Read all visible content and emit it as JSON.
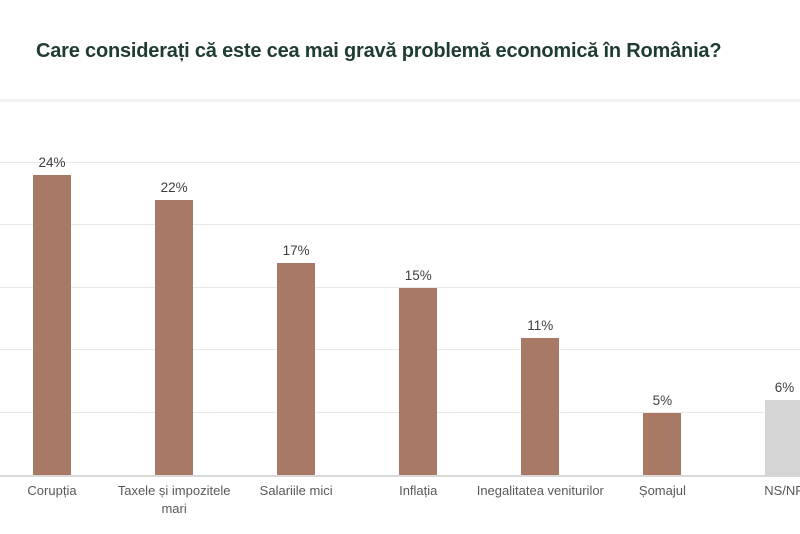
{
  "page": {
    "background": "#ffffff"
  },
  "chart_data": {
    "type": "bar",
    "title": "Care considerați că este cea mai gravă problemă economică în România?",
    "title_color": "#1e3b34",
    "categories": [
      "Corupția",
      "Taxele și impozitele mari",
      "Salariile mici",
      "Inflația",
      "Inegalitatea veniturilor",
      "Șomajul",
      "NS/NR"
    ],
    "values": [
      24,
      22,
      17,
      15,
      11,
      5,
      6
    ],
    "value_labels": [
      "24%",
      "22%",
      "17%",
      "15%",
      "11%",
      "5%",
      "6%"
    ],
    "bar_colors": [
      "#a87964",
      "#a87964",
      "#a87964",
      "#a87964",
      "#a87964",
      "#a87964",
      "#d5d5d5"
    ],
    "xlabel": "",
    "ylabel": "",
    "ylim": [
      0,
      30
    ],
    "gridline_step": 5,
    "grid": true,
    "legend": "none",
    "value_label_color": "#3f3f3f",
    "category_label_color": "#595959",
    "gridline_color": "#e9e9e9",
    "axis_line_color": "#d9d9d9"
  }
}
